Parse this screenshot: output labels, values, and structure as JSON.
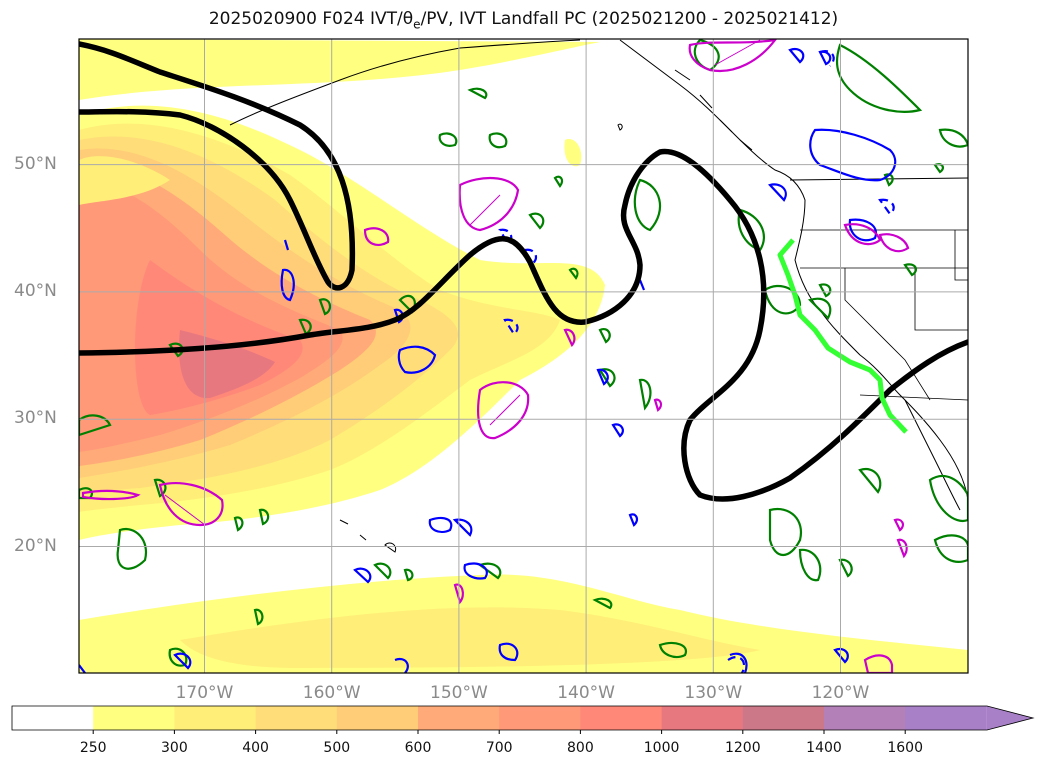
{
  "title": {
    "prefix": "2025020900 F024 IVT/θ",
    "sub": "e",
    "suffix": "/PV, IVT Landfall PC (2025021200 - 2025021412)"
  },
  "lon_ticks": [
    {
      "label": "170°W",
      "lon": -170
    },
    {
      "label": "160°W",
      "lon": -160
    },
    {
      "label": "150°W",
      "lon": -150
    },
    {
      "label": "140°W",
      "lon": -140
    },
    {
      "label": "130°W",
      "lon": -130
    },
    {
      "label": "120°W",
      "lon": -120
    }
  ],
  "lat_ticks": [
    {
      "label": "50°N",
      "lat": 50
    },
    {
      "label": "40°N",
      "lat": 40
    },
    {
      "label": "30°N",
      "lat": 30
    },
    {
      "label": "20°N",
      "lat": 20
    }
  ],
  "colorbar": {
    "levels": [
      "250",
      "300",
      "400",
      "500",
      "600",
      "700",
      "800",
      "1000",
      "1200",
      "1400",
      "1600"
    ],
    "colors": [
      "#ffffff",
      "#ffff80",
      "#ffee78",
      "#ffdd78",
      "#ffcc78",
      "#ffaa78",
      "#ff9978",
      "#ff8878",
      "#e87880",
      "#cc7888",
      "#b480b8",
      "#a880c8"
    ]
  },
  "legend_colors": {
    "ivt_fill_low": "#ffff80",
    "ivt_fill_high": "#e87880",
    "theta_e": "#008000",
    "pv": "#0000ff",
    "pv_neg": "#cc00cc",
    "pc_contour": "#000000",
    "landfall": "#33ff33"
  }
}
